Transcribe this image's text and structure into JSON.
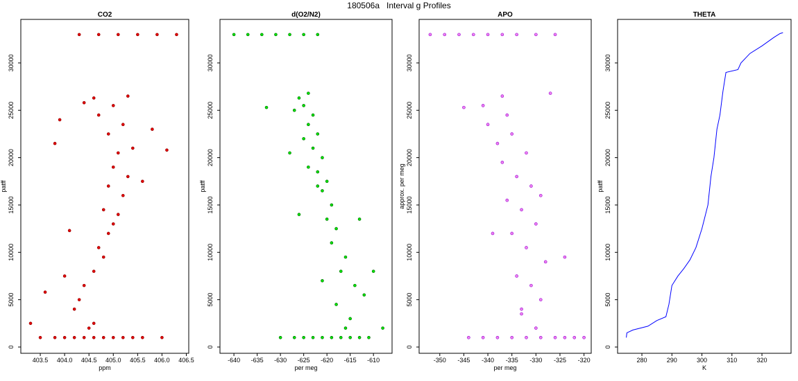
{
  "title": "180506a   Interval g Profiles",
  "chart_data": [
    {
      "type": "scatter",
      "title": "CO2",
      "xlabel": "ppm",
      "ylabel": "patff",
      "color": "#e00000",
      "edge": "#8b0000",
      "xlim": [
        403.1,
        406.55
      ],
      "ylim": [
        -660,
        34600
      ],
      "xticks": [
        403.5,
        {
          "value": 404,
          "label": "404.0"
        },
        404.5,
        {
          "value": 405,
          "label": "405.0"
        },
        405.5,
        {
          "value": 406,
          "label": "406.0"
        },
        406.5
      ],
      "yticks": [
        0,
        5000,
        10000,
        15000,
        20000,
        25000,
        30000
      ],
      "x": [
        403.5,
        403.8,
        404.0,
        404.2,
        404.4,
        404.6,
        404.8,
        405.0,
        405.2,
        405.4,
        405.6,
        406.0,
        404.3,
        404.7,
        405.1,
        405.5,
        405.9,
        406.3,
        404.5,
        404.6,
        404.2,
        404.3,
        404.0,
        404.4,
        404.6,
        404.8,
        404.7,
        404.9,
        405.0,
        405.1,
        404.8,
        405.2,
        404.9,
        405.3,
        405.0,
        405.1,
        405.4,
        404.9,
        405.2,
        404.7,
        405.0,
        404.4,
        405.3,
        404.6,
        403.9,
        405.8,
        403.8,
        405.6,
        404.1,
        403.6,
        403.3,
        406.1
      ],
      "y": [
        1000,
        1000,
        1000,
        1000,
        1000,
        1000,
        1000,
        1000,
        1000,
        1000,
        1000,
        1000,
        33000,
        33000,
        33000,
        33000,
        33000,
        33000,
        2000,
        2500,
        4000,
        5000,
        7500,
        6500,
        8000,
        9500,
        10500,
        12000,
        13000,
        14000,
        14500,
        16000,
        17000,
        18000,
        19000,
        20500,
        21000,
        22500,
        23500,
        24500,
        25500,
        25800,
        26500,
        26300,
        24000,
        23000,
        21500,
        17500,
        12300,
        5800,
        2500,
        20800
      ]
    },
    {
      "type": "scatter",
      "title": "d(O2/N2)",
      "xlabel": "per meg",
      "ylabel": "patff",
      "color": "#00e000",
      "edge": "#006400",
      "xlim": [
        -643,
        -606
      ],
      "ylim": [
        -660,
        34600
      ],
      "xticks": [
        -640,
        -635,
        -630,
        -625,
        -620,
        -615,
        -610
      ],
      "yticks": [
        0,
        5000,
        10000,
        15000,
        20000,
        25000,
        30000
      ],
      "x": [
        -630,
        -627,
        -625,
        -623,
        -621,
        -619,
        -617,
        -615,
        -613,
        -611,
        -640,
        -637,
        -634,
        -631,
        -628,
        -625,
        -622,
        -616,
        -615,
        -612,
        -614,
        -617,
        -616,
        -619,
        -618,
        -620,
        -619,
        -621,
        -620,
        -622,
        -621,
        -623,
        -622,
        -624,
        -623,
        -625,
        -626,
        -624,
        -627,
        -625,
        -628,
        -624,
        -622,
        -633,
        -610,
        -608,
        -613,
        -626,
        -618,
        -621
      ],
      "y": [
        1000,
        1000,
        1000,
        1000,
        1000,
        1000,
        1000,
        1000,
        1000,
        1000,
        33000,
        33000,
        33000,
        33000,
        33000,
        33000,
        33000,
        2000,
        3000,
        5500,
        6500,
        8000,
        9500,
        11000,
        12500,
        13500,
        15000,
        16500,
        17500,
        18500,
        20000,
        21000,
        22500,
        23500,
        24500,
        25500,
        26300,
        26800,
        25000,
        22000,
        20500,
        19000,
        17000,
        25300,
        8000,
        2000,
        13500,
        14000,
        4500,
        7000
      ]
    },
    {
      "type": "scatter",
      "title": "APO",
      "xlabel": "per meg",
      "ylabel": "approx. per meg",
      "color": "#ee82ee",
      "edge": "#9400d3",
      "xlim": [
        -354.3,
        -318.5
      ],
      "ylim": [
        -660,
        34600
      ],
      "xticks": [
        -350,
        -345,
        -340,
        -335,
        -330,
        -325,
        -320
      ],
      "yticks": [
        0,
        5000,
        10000,
        15000,
        20000,
        25000,
        30000
      ],
      "x": [
        -344,
        -341,
        -338,
        -335,
        -332,
        -329,
        -326,
        -324,
        -322,
        -320,
        -352,
        -349,
        -346,
        -343,
        -340,
        -337,
        -334,
        -330,
        -326,
        -330,
        -333,
        -329,
        -331,
        -334,
        -328,
        -332,
        -335,
        -330,
        -333,
        -336,
        -331,
        -334,
        -337,
        -332,
        -338,
        -335,
        -340,
        -336,
        -341,
        -337,
        -345,
        -327,
        -324,
        -339,
        -329,
        -333
      ],
      "y": [
        1000,
        1000,
        1000,
        1000,
        1000,
        1000,
        1000,
        1000,
        1000,
        1000,
        33000,
        33000,
        33000,
        33000,
        33000,
        33000,
        33000,
        33000,
        33000,
        2000,
        3500,
        5000,
        6500,
        7500,
        9000,
        10500,
        12000,
        13000,
        14500,
        15500,
        17000,
        18000,
        19500,
        20500,
        21500,
        22500,
        23500,
        24500,
        25500,
        26500,
        25300,
        26800,
        9500,
        12000,
        16000,
        4000
      ]
    },
    {
      "type": "line",
      "title": "THETA",
      "xlabel": "K",
      "ylabel": "patff",
      "color": "#0000ff",
      "xlim": [
        271.9,
        329.7
      ],
      "ylim": [
        -660,
        34600
      ],
      "xticks": [
        280,
        290,
        300,
        310,
        320
      ],
      "yticks": [
        0,
        5000,
        10000,
        15000,
        20000,
        25000,
        30000
      ],
      "x": [
        274.8,
        275,
        277,
        282,
        285,
        288,
        289,
        290,
        292,
        294,
        296,
        298,
        300,
        302,
        303,
        304,
        305,
        306,
        307,
        308,
        312,
        313,
        316,
        320,
        324,
        326,
        327
      ],
      "y": [
        1000,
        1500,
        1800,
        2200,
        2800,
        3200,
        4500,
        6500,
        7500,
        8300,
        9200,
        10500,
        12500,
        15000,
        18000,
        20000,
        23000,
        24500,
        27000,
        29000,
        29300,
        30000,
        31000,
        31800,
        32700,
        33100,
        33200
      ]
    }
  ]
}
